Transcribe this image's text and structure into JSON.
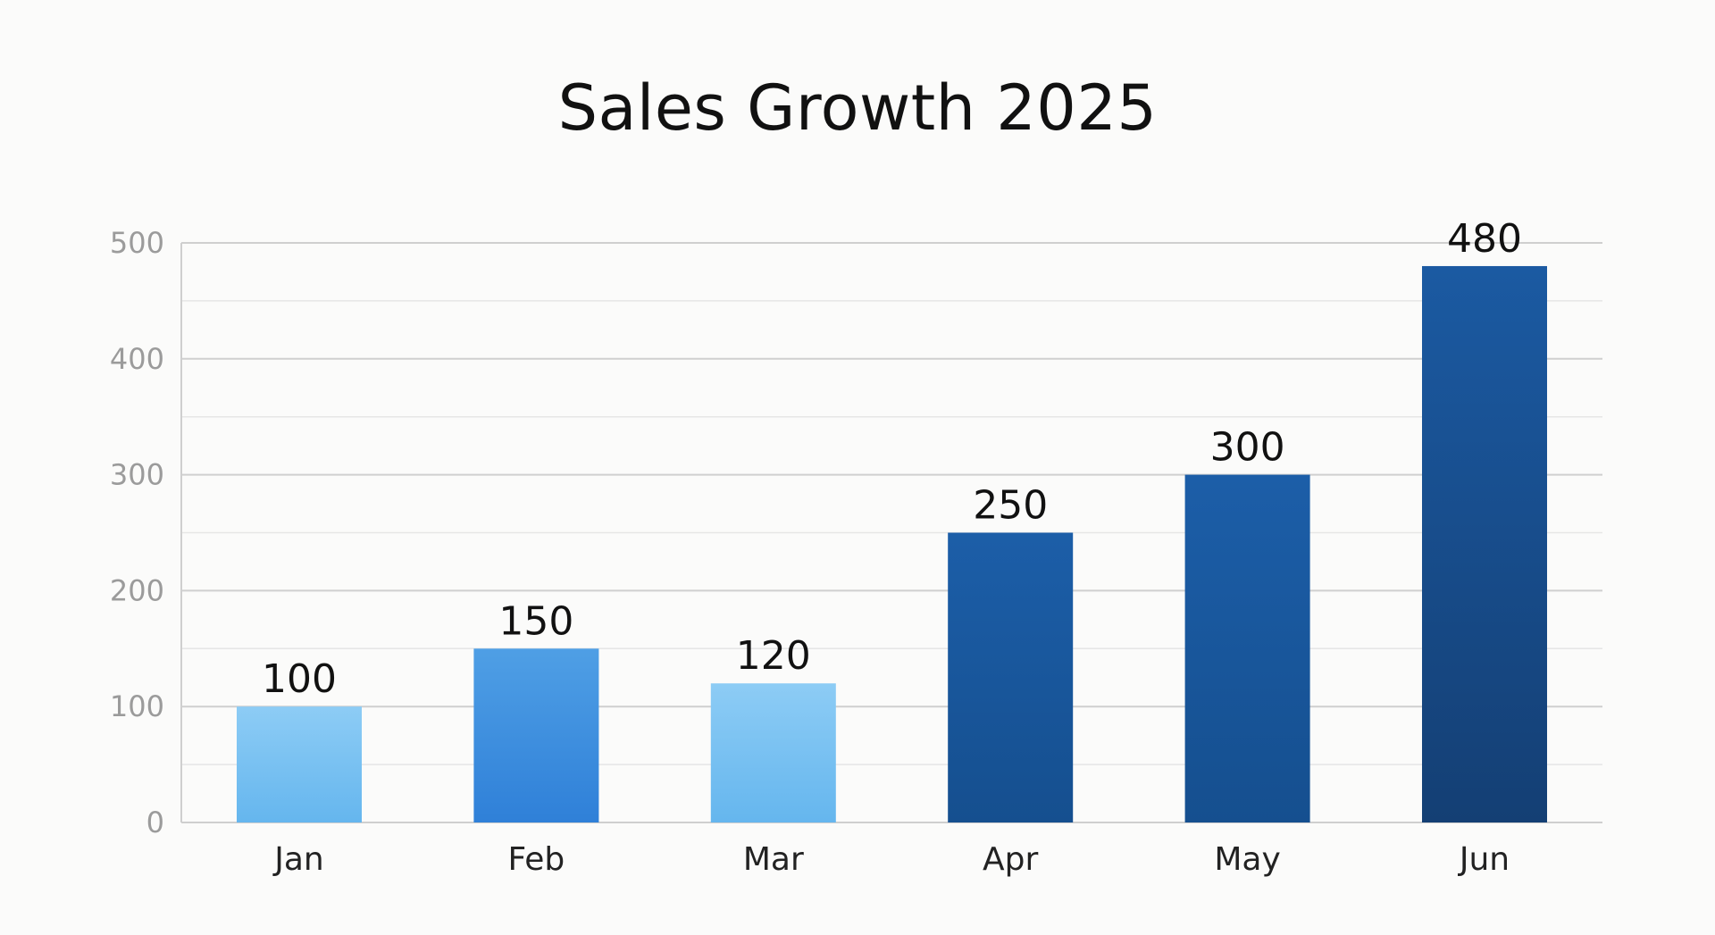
{
  "chart_data": {
    "type": "bar",
    "title": "Sales Growth 2025",
    "categories": [
      "Jan",
      "Feb",
      "Mar",
      "Apr",
      "May",
      "Jun"
    ],
    "values": [
      100,
      150,
      120,
      250,
      300,
      480
    ],
    "data_labels": [
      "100",
      "150",
      "120",
      "250",
      "300",
      "480"
    ],
    "ylim": [
      0,
      500
    ],
    "yticks": [
      0,
      100,
      200,
      300,
      400,
      500
    ],
    "ytick_labels": [
      "0",
      "100",
      "200",
      "300",
      "400",
      "500"
    ],
    "grid": true,
    "bar_colors": [
      [
        "#8dccf5",
        "#65b6ee"
      ],
      [
        "#4f9fe5",
        "#2f80d8"
      ],
      [
        "#8dccf5",
        "#65b6ee"
      ],
      [
        "#1c5ea8",
        "#154f8f"
      ],
      [
        "#1c5ea8",
        "#154f8f"
      ],
      [
        "#1b5aa2",
        "#143f74"
      ]
    ]
  }
}
